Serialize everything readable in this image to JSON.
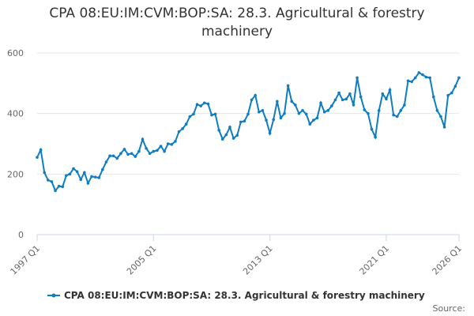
{
  "chart_data": {
    "type": "line",
    "title": "CPA 08:EU:IM:CVM:BOP:SA: 28.3. Agricultural & forestry machinery",
    "source_label": "Source:",
    "categories": [
      "1997 Q1",
      null,
      null,
      null,
      null,
      null,
      null,
      null,
      null,
      null,
      null,
      null,
      null,
      null,
      null,
      null,
      null,
      null,
      null,
      null,
      null,
      null,
      null,
      null,
      null,
      null,
      null,
      null,
      null,
      null,
      null,
      null,
      "2005 Q1",
      null,
      null,
      null,
      null,
      null,
      null,
      null,
      null,
      null,
      null,
      null,
      null,
      null,
      null,
      null,
      null,
      null,
      null,
      null,
      null,
      null,
      null,
      null,
      null,
      null,
      null,
      null,
      null,
      null,
      null,
      null,
      "2013 Q1",
      null,
      null,
      null,
      null,
      null,
      null,
      null,
      null,
      null,
      null,
      null,
      null,
      null,
      null,
      null,
      null,
      null,
      null,
      null,
      null,
      null,
      null,
      null,
      null,
      null,
      null,
      null,
      null,
      null,
      null,
      null,
      "2021 Q1",
      null,
      null,
      null,
      null,
      null,
      null,
      null,
      null,
      null,
      null,
      null,
      null,
      null,
      null,
      null,
      null,
      null,
      null,
      null,
      "2026 Q1"
    ],
    "series": [
      {
        "name": "CPA 08:EU:IM:CVM:BOP:SA: 28.3. Agricultural & forestry machinery",
        "color": "#0f7dc2",
        "values": [
          255,
          280,
          205,
          180,
          175,
          145,
          160,
          158,
          195,
          200,
          218,
          208,
          182,
          205,
          170,
          192,
          190,
          188,
          215,
          240,
          260,
          260,
          252,
          268,
          282,
          265,
          268,
          258,
          275,
          315,
          285,
          268,
          275,
          278,
          292,
          275,
          300,
          298,
          308,
          340,
          350,
          365,
          390,
          398,
          430,
          425,
          435,
          432,
          395,
          398,
          345,
          315,
          330,
          355,
          318,
          328,
          372,
          375,
          398,
          445,
          460,
          405,
          410,
          378,
          335,
          380,
          440,
          385,
          400,
          492,
          440,
          428,
          400,
          410,
          398,
          365,
          378,
          385,
          435,
          405,
          410,
          425,
          445,
          468,
          445,
          448,
          465,
          428,
          518,
          455,
          412,
          400,
          348,
          322,
          410,
          465,
          448,
          478,
          395,
          390,
          410,
          428,
          508,
          505,
          518,
          535,
          528,
          520,
          518,
          455,
          410,
          390,
          355,
          460,
          468,
          490,
          518
        ]
      }
    ],
    "ylim": [
      0,
      600
    ],
    "yticks": [
      0,
      200,
      400,
      600
    ],
    "grid": true
  }
}
